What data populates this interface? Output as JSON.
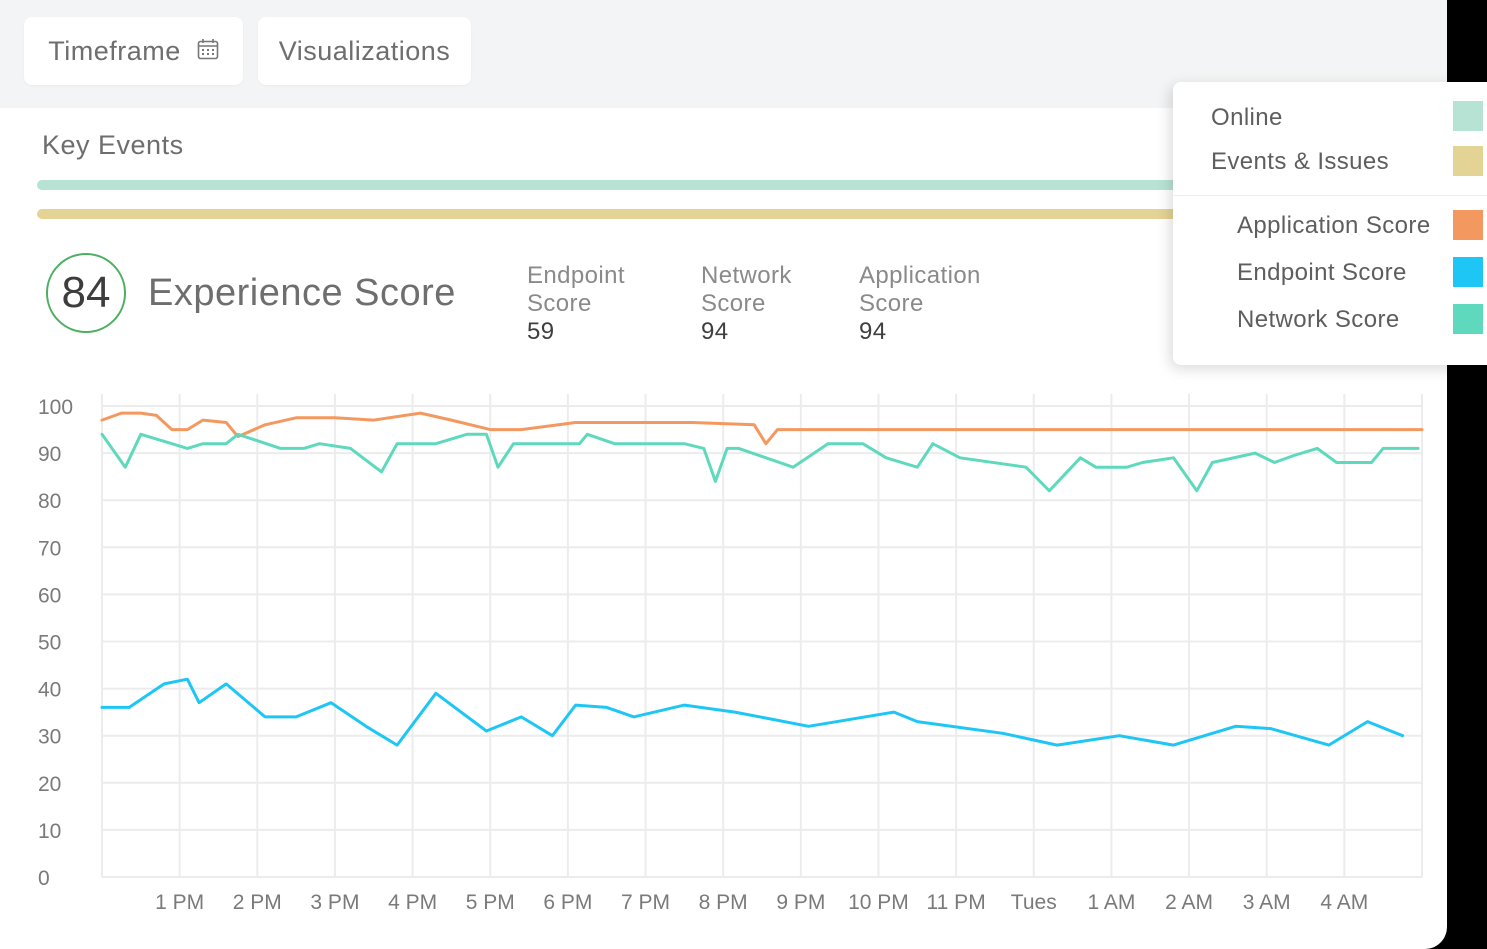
{
  "toolbar": {
    "timeframe_label": "Timeframe",
    "visualizations_label": "Visualizations"
  },
  "key_events": {
    "title": "Key Events",
    "online_color": "#b7e3d5",
    "events_color": "#e3d395"
  },
  "experience": {
    "score": "84",
    "title": "Experience Score",
    "subscores": [
      {
        "label1": "Endpoint",
        "label2": "Score",
        "value": "59"
      },
      {
        "label1": "Network",
        "label2": "Score",
        "value": "94"
      },
      {
        "label1": "Application",
        "label2": "Score",
        "value": "94"
      }
    ]
  },
  "legend": {
    "items": [
      {
        "label": "Online",
        "color": "#b7e3d5"
      },
      {
        "label": "Events & Issues",
        "color": "#e3d395"
      },
      {
        "label": "Application Score",
        "color": "#f3985f"
      },
      {
        "label": "Endpoint Score",
        "color": "#1ec6f5"
      },
      {
        "label": "Network Score",
        "color": "#5fd9bd"
      }
    ]
  },
  "chart_data": {
    "type": "line",
    "ylim": [
      0,
      100
    ],
    "yticks": [
      "0",
      "10",
      "20",
      "30",
      "40",
      "50",
      "60",
      "70",
      "80",
      "90",
      "100"
    ],
    "xticks": [
      "1 PM",
      "2 PM",
      "3 PM",
      "4 PM",
      "5 PM",
      "6 PM",
      "7 PM",
      "8 PM",
      "9 PM",
      "10 PM",
      "11 PM",
      "Tues",
      "1 AM",
      "2 AM",
      "3 AM",
      "4 AM"
    ],
    "xlim": [
      12.0,
      29.0
    ],
    "grid": true,
    "series": [
      {
        "name": "Application Score",
        "color": "#f3985f",
        "points": [
          [
            12.0,
            97
          ],
          [
            12.25,
            98.5
          ],
          [
            12.5,
            98.5
          ],
          [
            12.7,
            98
          ],
          [
            12.9,
            95
          ],
          [
            13.1,
            95
          ],
          [
            13.3,
            97
          ],
          [
            13.6,
            96.5
          ],
          [
            13.75,
            93.5
          ],
          [
            14.1,
            96
          ],
          [
            14.5,
            97.5
          ],
          [
            15.0,
            97.5
          ],
          [
            15.5,
            97
          ],
          [
            16.1,
            98.5
          ],
          [
            16.5,
            97
          ],
          [
            17.0,
            95
          ],
          [
            17.4,
            95
          ],
          [
            18.1,
            96.5
          ],
          [
            18.5,
            96.5
          ],
          [
            19.0,
            96.5
          ],
          [
            19.6,
            96.5
          ],
          [
            20.4,
            96
          ],
          [
            20.55,
            92
          ],
          [
            20.7,
            95
          ],
          [
            29.0,
            95
          ]
        ]
      },
      {
        "name": "Network Score",
        "color": "#5fd9bd",
        "points": [
          [
            12.0,
            94
          ],
          [
            12.3,
            87
          ],
          [
            12.5,
            94
          ],
          [
            12.9,
            92
          ],
          [
            13.1,
            91
          ],
          [
            13.3,
            92
          ],
          [
            13.6,
            92
          ],
          [
            13.75,
            94
          ],
          [
            14.3,
            91
          ],
          [
            14.6,
            91
          ],
          [
            14.8,
            92
          ],
          [
            15.2,
            91
          ],
          [
            15.6,
            86
          ],
          [
            15.8,
            92
          ],
          [
            16.3,
            92
          ],
          [
            16.7,
            94
          ],
          [
            16.95,
            94
          ],
          [
            17.1,
            87
          ],
          [
            17.3,
            92
          ],
          [
            18.15,
            92
          ],
          [
            18.25,
            94
          ],
          [
            18.6,
            92
          ],
          [
            19.5,
            92
          ],
          [
            19.75,
            91
          ],
          [
            19.9,
            84
          ],
          [
            20.05,
            91
          ],
          [
            20.2,
            91
          ],
          [
            20.9,
            87
          ],
          [
            21.35,
            92
          ],
          [
            21.8,
            92
          ],
          [
            22.1,
            89
          ],
          [
            22.5,
            87
          ],
          [
            22.7,
            92
          ],
          [
            23.05,
            89
          ],
          [
            23.9,
            87
          ],
          [
            24.2,
            82
          ],
          [
            24.6,
            89
          ],
          [
            24.8,
            87
          ],
          [
            25.2,
            87
          ],
          [
            25.4,
            88
          ],
          [
            25.8,
            89
          ],
          [
            26.1,
            82
          ],
          [
            26.3,
            88
          ],
          [
            26.85,
            90
          ],
          [
            27.1,
            88
          ],
          [
            27.35,
            89.5
          ],
          [
            27.65,
            91
          ],
          [
            27.9,
            88
          ],
          [
            28.35,
            88
          ],
          [
            28.5,
            91
          ],
          [
            28.95,
            91
          ]
        ]
      },
      {
        "name": "Endpoint Score",
        "color": "#1ec6f5",
        "points": [
          [
            12.0,
            36
          ],
          [
            12.35,
            36
          ],
          [
            12.8,
            41
          ],
          [
            13.1,
            42
          ],
          [
            13.25,
            37
          ],
          [
            13.6,
            41
          ],
          [
            14.1,
            34
          ],
          [
            14.5,
            34
          ],
          [
            14.95,
            37
          ],
          [
            15.4,
            32
          ],
          [
            15.8,
            28
          ],
          [
            16.3,
            39
          ],
          [
            16.95,
            31
          ],
          [
            17.4,
            34
          ],
          [
            17.8,
            30
          ],
          [
            18.1,
            36.5
          ],
          [
            18.5,
            36
          ],
          [
            18.85,
            34
          ],
          [
            19.5,
            36.5
          ],
          [
            20.15,
            35
          ],
          [
            21.1,
            32
          ],
          [
            22.2,
            35
          ],
          [
            22.5,
            33
          ],
          [
            23.6,
            30.5
          ],
          [
            24.3,
            28
          ],
          [
            25.1,
            30
          ],
          [
            25.8,
            28
          ],
          [
            26.6,
            32
          ],
          [
            27.05,
            31.5
          ],
          [
            27.8,
            28
          ],
          [
            28.3,
            33
          ],
          [
            28.75,
            30
          ]
        ]
      }
    ]
  }
}
